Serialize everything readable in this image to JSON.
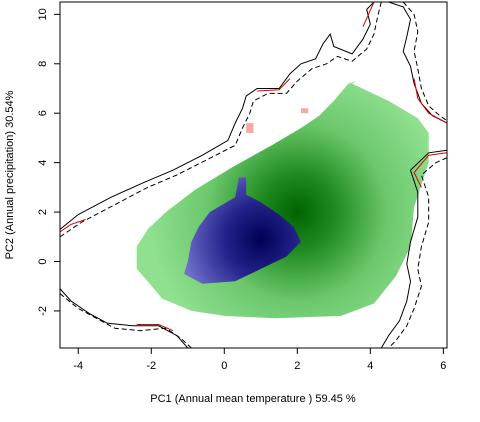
{
  "chart_data": {
    "type": "heatmap",
    "title": "",
    "xlabel": "PC1 (Annual mean temperature ) 59.45 %",
    "ylabel": "PC2 (Annual precipitation) 30.54%",
    "xlim": [
      -4.5,
      6.1
    ],
    "ylim": [
      -3.5,
      10.5
    ],
    "x_ticks": [
      -4,
      -2,
      0,
      2,
      4,
      6
    ],
    "y_ticks": [
      -2,
      0,
      2,
      4,
      6,
      8,
      10
    ],
    "grid": false,
    "legend": "none",
    "colors": {
      "green_region": "#90e090",
      "green_core": "#006400",
      "blue_region": "#7070cc",
      "blue_core": "#000055",
      "overlap_pink": "#f4a9a9",
      "solid_contour": "#000000",
      "dashed_contour": "#000000",
      "red_contour": "#e00000"
    },
    "green_niche_polygon": [
      [
        -2.4,
        0.6
      ],
      [
        -2.4,
        -0.3
      ],
      [
        -2.1,
        -0.8
      ],
      [
        -1.7,
        -1.5
      ],
      [
        -0.9,
        -2.0
      ],
      [
        0.0,
        -2.2
      ],
      [
        1.4,
        -2.3
      ],
      [
        3.2,
        -2.2
      ],
      [
        4.1,
        -1.7
      ],
      [
        4.7,
        -0.6
      ],
      [
        5.1,
        0.6
      ],
      [
        5.2,
        2.2
      ],
      [
        5.6,
        4.0
      ],
      [
        5.6,
        5.2
      ],
      [
        5.3,
        5.8
      ],
      [
        4.5,
        6.5
      ],
      [
        3.5,
        7.2
      ],
      [
        3.6,
        7.3
      ],
      [
        3.4,
        7.2
      ],
      [
        3.0,
        6.5
      ],
      [
        2.6,
        5.9
      ],
      [
        2.1,
        5.4
      ],
      [
        1.3,
        4.7
      ],
      [
        0.2,
        3.8
      ],
      [
        -0.8,
        2.9
      ],
      [
        -1.6,
        2.0
      ],
      [
        -2.1,
        1.3
      ],
      [
        -2.4,
        0.6
      ]
    ],
    "green_density_peak": [
      2.0,
      2.0
    ],
    "blue_niche_polygon": [
      [
        -1.1,
        -0.5
      ],
      [
        -0.6,
        -0.9
      ],
      [
        0.3,
        -0.8
      ],
      [
        1.0,
        -0.3
      ],
      [
        1.7,
        0.2
      ],
      [
        2.1,
        0.8
      ],
      [
        1.9,
        1.4
      ],
      [
        1.5,
        1.9
      ],
      [
        1.0,
        2.4
      ],
      [
        0.6,
        2.7
      ],
      [
        0.6,
        3.4
      ],
      [
        0.4,
        3.4
      ],
      [
        0.3,
        2.6
      ],
      [
        -0.4,
        2.0
      ],
      [
        -0.7,
        1.4
      ],
      [
        -0.9,
        0.8
      ],
      [
        -1.0,
        0.0
      ],
      [
        -1.1,
        -0.5
      ]
    ],
    "blue_density_peak": [
      1.0,
      0.9
    ],
    "overlap_patches": [
      {
        "x": [
          0.6,
          0.8
        ],
        "y": [
          5.2,
          5.6
        ]
      },
      {
        "x": [
          2.1,
          2.3
        ],
        "y": [
          6.0,
          6.2
        ]
      }
    ],
    "solid_contour_upper": [
      [
        -4.5,
        1.3
      ],
      [
        -4.0,
        1.9
      ],
      [
        -3.1,
        2.6
      ],
      [
        -2.2,
        3.2
      ],
      [
        -1.4,
        3.7
      ],
      [
        -0.6,
        4.3
      ],
      [
        0.1,
        4.9
      ],
      [
        0.3,
        5.6
      ],
      [
        0.5,
        6.2
      ],
      [
        0.6,
        6.7
      ],
      [
        0.9,
        7.0
      ],
      [
        1.5,
        7.0
      ],
      [
        1.8,
        7.6
      ],
      [
        2.1,
        8.0
      ],
      [
        2.5,
        8.2
      ],
      [
        2.7,
        8.8
      ],
      [
        2.9,
        9.2
      ],
      [
        3.0,
        8.7
      ],
      [
        3.5,
        8.4
      ],
      [
        3.8,
        9.0
      ],
      [
        4.0,
        9.6
      ],
      [
        3.9,
        10.2
      ],
      [
        4.1,
        10.5
      ]
    ],
    "solid_contour_right": [
      [
        4.5,
        10.5
      ],
      [
        4.9,
        10.3
      ],
      [
        5.1,
        9.8
      ],
      [
        5.0,
        9.1
      ],
      [
        4.9,
        8.5
      ],
      [
        5.1,
        7.9
      ],
      [
        5.2,
        7.2
      ],
      [
        5.4,
        6.4
      ],
      [
        5.7,
        5.9
      ],
      [
        6.1,
        5.6
      ]
    ],
    "solid_contour_lower": [
      [
        -4.5,
        -1.1
      ],
      [
        -4.2,
        -1.6
      ],
      [
        -3.7,
        -2.1
      ],
      [
        -3.2,
        -2.5
      ],
      [
        -2.5,
        -2.6
      ],
      [
        -1.8,
        -2.6
      ],
      [
        -1.3,
        -3.0
      ],
      [
        -1.0,
        -3.5
      ]
    ],
    "solid_contour_right_lower": [
      [
        6.1,
        4.5
      ],
      [
        5.6,
        4.4
      ],
      [
        5.1,
        3.7
      ],
      [
        5.3,
        2.8
      ],
      [
        5.3,
        1.8
      ],
      [
        5.1,
        0.8
      ],
      [
        5.0,
        -0.1
      ],
      [
        5.1,
        -0.8
      ],
      [
        5.0,
        -1.6
      ],
      [
        4.8,
        -2.4
      ],
      [
        4.5,
        -3.0
      ],
      [
        4.3,
        -3.5
      ]
    ],
    "dashed_contour_upper": [
      [
        -4.5,
        1.0
      ],
      [
        -3.9,
        1.6
      ],
      [
        -3.0,
        2.3
      ],
      [
        -2.1,
        3.0
      ],
      [
        -1.3,
        3.5
      ],
      [
        -0.5,
        4.1
      ],
      [
        0.3,
        4.7
      ],
      [
        0.5,
        5.4
      ],
      [
        0.7,
        6.0
      ],
      [
        0.8,
        6.5
      ],
      [
        1.2,
        6.8
      ],
      [
        1.7,
        6.8
      ],
      [
        2.0,
        7.3
      ],
      [
        2.4,
        7.8
      ],
      [
        2.8,
        8.0
      ],
      [
        3.1,
        8.3
      ],
      [
        3.5,
        8.1
      ],
      [
        3.9,
        8.6
      ],
      [
        4.1,
        9.2
      ],
      [
        4.2,
        9.9
      ],
      [
        4.3,
        10.5
      ]
    ],
    "dashed_contour_right": [
      [
        4.9,
        10.5
      ],
      [
        5.2,
        10.0
      ],
      [
        5.3,
        9.3
      ],
      [
        5.2,
        8.5
      ],
      [
        5.3,
        7.8
      ],
      [
        5.4,
        7.0
      ],
      [
        5.6,
        6.3
      ],
      [
        5.9,
        5.9
      ],
      [
        6.1,
        5.7
      ]
    ],
    "dashed_contour_lower": [
      [
        -4.5,
        -1.3
      ],
      [
        -4.0,
        -1.9
      ],
      [
        -3.5,
        -2.3
      ],
      [
        -3.0,
        -2.7
      ],
      [
        -2.3,
        -2.8
      ],
      [
        -1.6,
        -2.7
      ],
      [
        -1.2,
        -3.1
      ],
      [
        -0.9,
        -3.5
      ]
    ],
    "dashed_contour_right_lower": [
      [
        6.1,
        4.2
      ],
      [
        5.8,
        4.0
      ],
      [
        5.4,
        3.5
      ],
      [
        5.6,
        2.6
      ],
      [
        5.6,
        1.6
      ],
      [
        5.4,
        0.6
      ],
      [
        5.3,
        -0.3
      ],
      [
        5.4,
        -1.0
      ],
      [
        5.2,
        -1.9
      ],
      [
        5.0,
        -2.6
      ],
      [
        4.7,
        -3.2
      ],
      [
        4.5,
        -3.5
      ]
    ],
    "red_contour_segments": [
      [
        [
          -4.5,
          1.2
        ],
        [
          -4.2,
          1.5
        ],
        [
          -3.8,
          1.7
        ]
      ],
      [
        [
          -2.4,
          -2.55
        ],
        [
          -1.8,
          -2.55
        ],
        [
          -1.4,
          -2.8
        ]
      ],
      [
        [
          0.9,
          6.9
        ],
        [
          1.5,
          6.95
        ],
        [
          1.8,
          7.4
        ]
      ],
      [
        [
          3.8,
          9.5
        ],
        [
          3.95,
          10.0
        ],
        [
          4.1,
          10.5
        ]
      ],
      [
        [
          5.2,
          7.4
        ],
        [
          5.3,
          6.6
        ],
        [
          5.6,
          6.0
        ],
        [
          6.1,
          5.6
        ]
      ],
      [
        [
          6.1,
          4.4
        ],
        [
          5.6,
          4.3
        ],
        [
          5.2,
          3.6
        ],
        [
          5.4,
          3.0
        ]
      ]
    ]
  }
}
